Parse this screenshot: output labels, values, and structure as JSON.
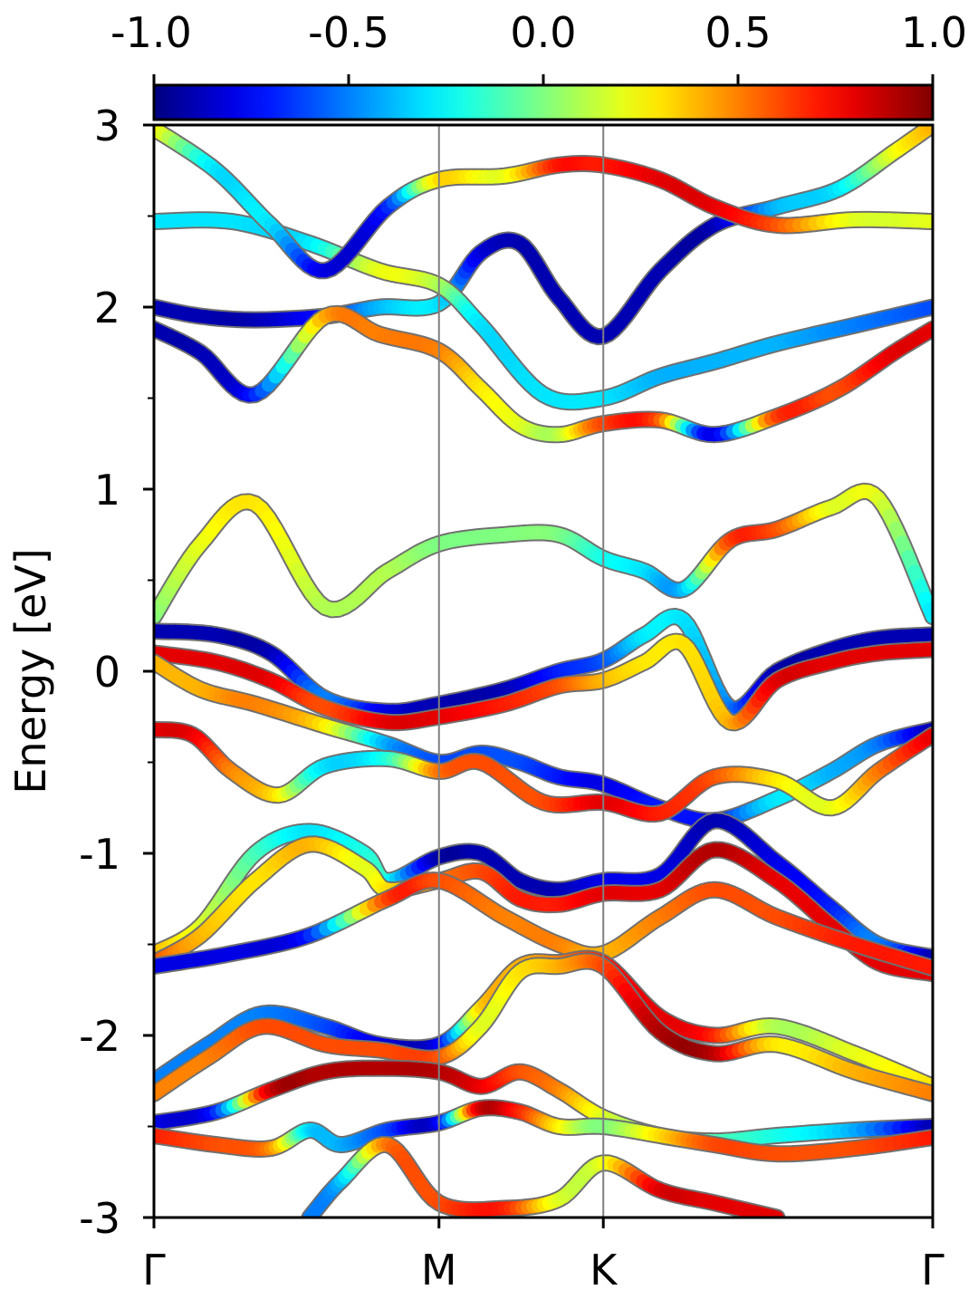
{
  "chart_data": {
    "type": "line",
    "xlabel": "",
    "ylabel": "Energy [eV]",
    "ylim": [
      -3,
      3
    ],
    "xlim": [
      0,
      1
    ],
    "y_ticks": [
      "3",
      "2",
      "1",
      "0",
      "-1",
      "-2",
      "-3"
    ],
    "y_tick_values": [
      3,
      2,
      1,
      0,
      -1,
      -2,
      -3
    ],
    "y_minor_ticks": [
      2.5,
      1.5,
      0.5,
      -0.5,
      -1.5,
      -2.5
    ],
    "x_ticks": [
      {
        "label": "Γ",
        "value": 0.0
      },
      {
        "label": "M",
        "value": 0.366
      },
      {
        "label": "K",
        "value": 0.577
      },
      {
        "label": "Γ",
        "value": 1.0
      }
    ],
    "colorbar": {
      "min": -1.0,
      "max": 1.0,
      "colormap": "jet",
      "placement": "top",
      "ticks": [
        "-1.0",
        "-0.5",
        "0.0",
        "0.5",
        "1.0"
      ],
      "tick_values": [
        -1.0,
        -0.5,
        0.0,
        0.5,
        1.0
      ]
    },
    "grid": false,
    "series": [
      {
        "x": [
          0,
          0.06,
          0.13,
          0.22,
          0.29,
          0.366,
          0.42,
          0.47,
          0.52,
          0.577,
          0.65,
          0.72,
          0.8,
          0.88,
          0.95,
          1.0
        ],
        "y": [
          2.0,
          1.95,
          1.93,
          1.95,
          2.0,
          2.02,
          2.3,
          2.35,
          2.05,
          1.84,
          2.2,
          2.45,
          2.55,
          2.65,
          2.85,
          3.0
        ],
        "c": [
          -0.9,
          -0.9,
          -0.9,
          -0.7,
          -0.4,
          -0.3,
          -0.8,
          -0.9,
          -0.9,
          -0.9,
          -0.9,
          -0.9,
          -0.4,
          -0.3,
          0.2,
          0.4
        ]
      },
      {
        "x": [
          0,
          0.06,
          0.13,
          0.22,
          0.29,
          0.366,
          0.42,
          0.47,
          0.52,
          0.577,
          0.65,
          0.72,
          0.8,
          0.88,
          0.95,
          1.0
        ],
        "y": [
          1.88,
          1.75,
          1.52,
          1.95,
          1.85,
          1.76,
          1.55,
          1.35,
          1.3,
          1.36,
          1.38,
          1.3,
          1.4,
          1.55,
          1.75,
          1.88
        ],
        "c": [
          -0.9,
          -0.9,
          -0.7,
          0.4,
          0.5,
          0.5,
          0.3,
          0.2,
          0.1,
          0.6,
          0.6,
          -0.8,
          0.6,
          0.6,
          0.8,
          0.8
        ]
      },
      {
        "x": [
          0,
          0.1,
          0.2,
          0.29,
          0.366,
          0.42,
          0.5,
          0.577,
          0.65,
          0.72,
          0.8,
          0.9,
          1.0
        ],
        "y": [
          2.47,
          2.47,
          2.35,
          2.2,
          2.12,
          1.9,
          1.52,
          1.5,
          1.62,
          1.7,
          1.8,
          1.9,
          2.0
        ],
        "c": [
          -0.3,
          -0.3,
          -0.3,
          0.2,
          0.1,
          -0.3,
          -0.3,
          -0.3,
          -0.4,
          -0.4,
          -0.4,
          -0.5,
          -0.6
        ]
      },
      {
        "x": [
          0,
          0.08,
          0.15,
          0.22,
          0.3,
          0.366,
          0.45,
          0.52,
          0.577,
          0.65,
          0.72,
          0.8,
          0.9,
          1.0
        ],
        "y": [
          2.98,
          2.75,
          2.45,
          2.2,
          2.55,
          2.7,
          2.72,
          2.78,
          2.78,
          2.7,
          2.55,
          2.45,
          2.48,
          2.47
        ],
        "c": [
          0.3,
          -0.3,
          -0.3,
          -0.8,
          -0.7,
          0.3,
          0.2,
          0.7,
          0.7,
          0.8,
          0.8,
          0.6,
          0.2,
          0.2
        ]
      },
      {
        "x": [
          0,
          0.06,
          0.13,
          0.22,
          0.3,
          0.366,
          0.45,
          0.52,
          0.577,
          0.63,
          0.68,
          0.74,
          0.8,
          0.87,
          0.93,
          1.0
        ],
        "y": [
          0.3,
          0.7,
          0.92,
          0.35,
          0.55,
          0.7,
          0.75,
          0.75,
          0.62,
          0.55,
          0.45,
          0.72,
          0.78,
          0.9,
          0.95,
          0.3
        ],
        "c": [
          0.0,
          0.2,
          0.3,
          0.1,
          0.1,
          0.0,
          0.0,
          0.0,
          -0.2,
          -0.3,
          -0.4,
          0.6,
          0.6,
          0.2,
          0.2,
          -0.3
        ]
      },
      {
        "x": [
          0,
          0.08,
          0.15,
          0.22,
          0.3,
          0.366,
          0.45,
          0.52,
          0.577,
          0.63,
          0.68,
          0.74,
          0.8,
          0.87,
          0.93,
          1.0
        ],
        "y": [
          0.22,
          0.2,
          0.1,
          -0.15,
          -0.22,
          -0.18,
          -0.1,
          0.0,
          0.06,
          0.2,
          0.28,
          -0.2,
          0.0,
          0.12,
          0.18,
          0.2
        ],
        "c": [
          -0.9,
          -0.9,
          -0.9,
          -0.5,
          -0.8,
          -0.9,
          -0.9,
          -0.7,
          -0.6,
          -0.3,
          -0.3,
          -0.5,
          -0.9,
          -0.9,
          -0.9,
          -0.9
        ]
      },
      {
        "x": [
          0,
          0.08,
          0.15,
          0.22,
          0.3,
          0.366,
          0.45,
          0.52,
          0.577,
          0.63,
          0.68,
          0.74,
          0.8,
          0.87,
          0.93,
          1.0
        ],
        "y": [
          0.1,
          0.05,
          -0.05,
          -0.2,
          -0.28,
          -0.25,
          -0.18,
          -0.08,
          -0.05,
          0.05,
          0.15,
          -0.28,
          -0.05,
          0.05,
          0.1,
          0.12
        ],
        "c": [
          0.8,
          0.8,
          0.8,
          0.6,
          0.8,
          0.8,
          0.7,
          0.6,
          0.4,
          0.3,
          0.3,
          0.4,
          0.8,
          0.8,
          0.8,
          0.8
        ]
      },
      {
        "x": [
          0,
          0.06,
          0.13,
          0.22,
          0.3,
          0.366,
          0.42,
          0.47,
          0.52,
          0.577,
          0.65,
          0.72,
          0.8,
          0.87,
          0.93,
          1.0
        ],
        "y": [
          0.05,
          -0.1,
          -0.18,
          -0.3,
          -0.4,
          -0.5,
          -0.45,
          -0.5,
          -0.58,
          -0.62,
          -0.75,
          -0.82,
          -0.7,
          -0.55,
          -0.4,
          -0.32
        ],
        "c": [
          0.4,
          0.4,
          0.5,
          0.3,
          -0.4,
          -0.6,
          -0.6,
          -0.6,
          -0.7,
          -0.8,
          -0.7,
          -0.7,
          -0.3,
          -0.4,
          -0.5,
          -0.9
        ]
      },
      {
        "x": [
          0,
          0.05,
          0.1,
          0.16,
          0.22,
          0.3,
          0.366,
          0.42,
          0.5,
          0.577,
          0.65,
          0.72,
          0.8,
          0.87,
          0.93,
          1.0
        ],
        "y": [
          -0.32,
          -0.35,
          -0.55,
          -0.68,
          -0.52,
          -0.48,
          -0.55,
          -0.5,
          -0.72,
          -0.72,
          -0.78,
          -0.58,
          -0.6,
          -0.75,
          -0.55,
          -0.35
        ],
        "c": [
          0.8,
          0.8,
          0.5,
          0.3,
          -0.3,
          -0.2,
          0.5,
          0.6,
          0.6,
          0.8,
          0.7,
          0.6,
          0.3,
          0.2,
          0.5,
          0.8
        ]
      },
      {
        "x": [
          0,
          0.06,
          0.13,
          0.2,
          0.27,
          0.3,
          0.366,
          0.42,
          0.47,
          0.52,
          0.577,
          0.65,
          0.72,
          0.8,
          0.87,
          0.93,
          1.0
        ],
        "y": [
          -1.55,
          -1.4,
          -1.0,
          -0.88,
          -1.0,
          -1.15,
          -1.02,
          -1.0,
          -1.15,
          -1.2,
          -1.15,
          -1.12,
          -0.82,
          -1.05,
          -1.3,
          -1.5,
          -1.57
        ],
        "c": [
          0.4,
          0.2,
          -0.1,
          -0.3,
          -0.2,
          -0.2,
          -0.9,
          -0.9,
          -0.9,
          -0.9,
          -0.8,
          -0.8,
          -0.9,
          -0.8,
          -0.7,
          -0.5,
          -0.9
        ]
      },
      {
        "x": [
          0,
          0.06,
          0.13,
          0.2,
          0.27,
          0.3,
          0.366,
          0.42,
          0.47,
          0.52,
          0.577,
          0.65,
          0.72,
          0.8,
          0.87,
          0.93,
          1.0
        ],
        "y": [
          -1.6,
          -1.45,
          -1.15,
          -0.95,
          -1.08,
          -1.2,
          -1.15,
          -1.1,
          -1.25,
          -1.28,
          -1.22,
          -1.2,
          -0.98,
          -1.15,
          -1.4,
          -1.6,
          -1.66
        ],
        "c": [
          0.6,
          0.4,
          0.3,
          0.4,
          0.2,
          0.3,
          0.5,
          0.6,
          0.7,
          0.7,
          0.8,
          0.8,
          0.9,
          0.8,
          0.8,
          0.8,
          0.8
        ]
      },
      {
        "x": [
          0,
          0.1,
          0.2,
          0.3,
          0.366,
          0.45,
          0.52,
          0.577,
          0.65,
          0.72,
          0.8,
          0.9,
          1.0
        ],
        "y": [
          -1.62,
          -1.55,
          -1.45,
          -1.25,
          -1.15,
          -1.35,
          -1.5,
          -1.55,
          -1.35,
          -1.2,
          -1.35,
          -1.5,
          -1.63
        ],
        "c": [
          -0.8,
          -0.8,
          -0.7,
          0.6,
          0.6,
          0.5,
          0.5,
          0.4,
          0.5,
          0.6,
          0.6,
          0.7,
          0.7
        ]
      },
      {
        "x": [
          0,
          0.07,
          0.14,
          0.22,
          0.29,
          0.366,
          0.42,
          0.47,
          0.52,
          0.577,
          0.65,
          0.72,
          0.8,
          0.9,
          1.0
        ],
        "y": [
          -2.25,
          -2.05,
          -1.88,
          -1.95,
          -2.05,
          -2.05,
          -1.85,
          -1.62,
          -1.6,
          -1.6,
          -1.9,
          -2.0,
          -1.95,
          -2.1,
          -2.28
        ],
        "c": [
          -0.5,
          -0.5,
          -0.5,
          -0.6,
          -0.8,
          -0.8,
          0.3,
          0.4,
          0.5,
          0.7,
          0.8,
          0.7,
          0.1,
          0.2,
          0.3
        ]
      },
      {
        "x": [
          0,
          0.07,
          0.14,
          0.22,
          0.29,
          0.366,
          0.42,
          0.47,
          0.52,
          0.577,
          0.65,
          0.72,
          0.8,
          0.9,
          1.0
        ],
        "y": [
          -2.32,
          -2.12,
          -1.95,
          -2.05,
          -2.08,
          -2.12,
          -1.95,
          -1.65,
          -1.62,
          -1.62,
          -1.98,
          -2.1,
          -2.05,
          -2.2,
          -2.32
        ],
        "c": [
          0.5,
          0.5,
          0.6,
          0.6,
          0.6,
          0.6,
          0.2,
          0.3,
          0.4,
          0.6,
          0.9,
          0.9,
          0.3,
          0.4,
          0.5
        ]
      },
      {
        "x": [
          0,
          0.08,
          0.15,
          0.22,
          0.29,
          0.366,
          0.42,
          0.47,
          0.52,
          0.577,
          0.65,
          0.72,
          0.8,
          0.9,
          1.0
        ],
        "y": [
          -2.48,
          -2.42,
          -2.3,
          -2.2,
          -2.18,
          -2.2,
          -2.28,
          -2.2,
          -2.3,
          -2.45,
          -2.55,
          -2.58,
          -2.55,
          -2.52,
          -2.5
        ],
        "c": [
          -0.8,
          -0.7,
          0.8,
          0.9,
          0.9,
          0.9,
          0.8,
          0.6,
          0.5,
          0.2,
          0.0,
          -0.1,
          -0.2,
          -0.4,
          -0.9
        ]
      },
      {
        "x": [
          0,
          0.08,
          0.15,
          0.2,
          0.24,
          0.3,
          0.366,
          0.42,
          0.47,
          0.52,
          0.577,
          0.65,
          0.72,
          0.8,
          0.9,
          1.0
        ],
        "y": [
          -2.55,
          -2.6,
          -2.62,
          -2.52,
          -2.6,
          -2.52,
          -2.48,
          -2.4,
          -2.42,
          -2.5,
          -2.5,
          -2.55,
          -2.6,
          -2.65,
          -2.62,
          -2.56
        ],
        "c": [
          0.7,
          0.6,
          0.5,
          -0.3,
          -0.4,
          -0.6,
          -0.8,
          0.8,
          0.7,
          0.3,
          0.0,
          0.3,
          0.6,
          0.6,
          0.6,
          0.7
        ]
      },
      {
        "x": [
          0.2,
          0.24,
          0.3,
          0.366,
          0.45,
          0.52,
          0.577,
          0.65,
          0.72,
          0.8
        ],
        "y": [
          -3.0,
          -2.8,
          -2.6,
          -2.92,
          -2.95,
          -2.9,
          -2.7,
          -2.85,
          -2.92,
          -3.0
        ],
        "c": [
          -0.5,
          -0.4,
          0.5,
          0.6,
          0.7,
          0.2,
          0.2,
          0.8,
          0.8,
          0.8
        ]
      }
    ]
  }
}
